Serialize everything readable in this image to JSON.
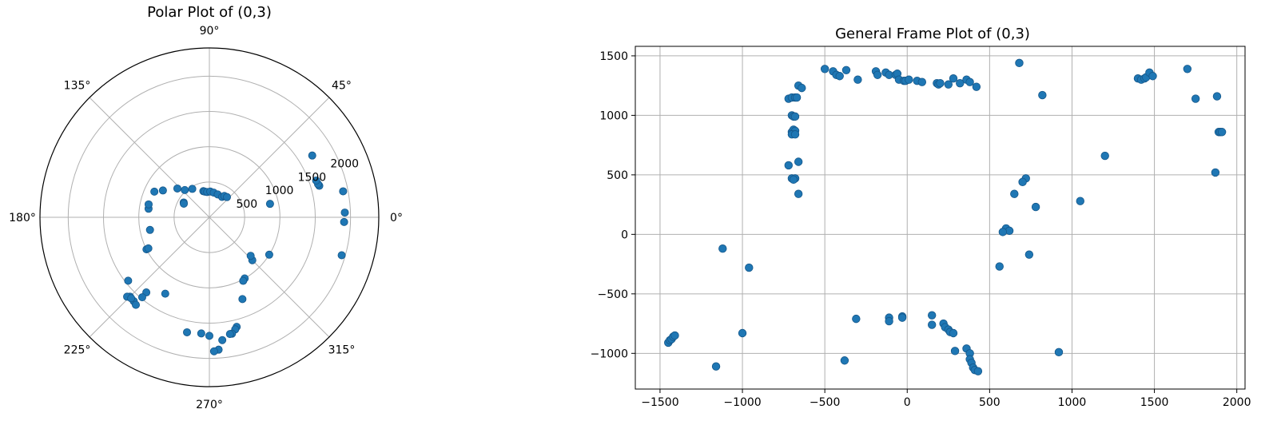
{
  "chart_data": [
    {
      "type": "scatter",
      "projection": "polar",
      "title": "Polar Plot of (0,3)",
      "theta_tick_labels": [
        "0°",
        "45°",
        "90°",
        "135°",
        "180°",
        "225°",
        "270°",
        "315°"
      ],
      "theta_ticks_deg": [
        0,
        45,
        90,
        135,
        180,
        225,
        270,
        315
      ],
      "r_tick_labels": [
        "500",
        "1000",
        "1500",
        "2000"
      ],
      "r_ticks": [
        500,
        1000,
        1500,
        2000
      ],
      "rlim": [
        0,
        2400
      ],
      "grid": true,
      "marker_color": "#1f77b4",
      "points": [
        {
          "theta": 2,
          "r": 1920
        },
        {
          "theta": -2,
          "r": 1910
        },
        {
          "theta": 11,
          "r": 1930
        },
        {
          "theta": -16,
          "r": 1950
        },
        {
          "theta": 31,
          "r": 1700
        },
        {
          "theta": 12.5,
          "r": 880
        },
        {
          "theta": -32,
          "r": 1000
        },
        {
          "theta": -45,
          "r": 860
        },
        {
          "theta": -43,
          "r": 800
        },
        {
          "theta": -60,
          "r": 1000
        },
        {
          "theta": -62,
          "r": 1020
        },
        {
          "theta": -68,
          "r": 1250
        },
        {
          "theta": -76,
          "r": 1600
        },
        {
          "theta": -77,
          "r": 1630
        },
        {
          "theta": -79,
          "r": 1680
        },
        {
          "theta": -80,
          "r": 1680
        },
        {
          "theta": -84,
          "r": 1750
        },
        {
          "theta": -86,
          "r": 1880
        },
        {
          "theta": -88,
          "r": 1900
        },
        {
          "theta": -90,
          "r": 1680
        },
        {
          "theta": -94,
          "r": 1650
        },
        {
          "theta": -101,
          "r": 1660
        },
        {
          "theta": -135,
          "r": 1590
        },
        {
          "theta": -130,
          "r": 1390
        },
        {
          "theta": -132,
          "r": 1600
        },
        {
          "theta": -136,
          "r": 1620
        },
        {
          "theta": -130,
          "r": 1620
        },
        {
          "theta": -134,
          "r": 1595
        },
        {
          "theta": -130,
          "r": 1480
        },
        {
          "theta": -120,
          "r": 1250
        },
        {
          "theta": -142,
          "r": 1460
        },
        {
          "theta": -153,
          "r": 1000
        },
        {
          "theta": -153,
          "r": 970
        },
        {
          "theta": -168,
          "r": 860
        },
        {
          "theta": 172,
          "r": 870
        },
        {
          "theta": 168,
          "r": 880
        },
        {
          "theta": 155,
          "r": 860
        },
        {
          "theta": 150,
          "r": 760
        },
        {
          "theta": 138,
          "r": 610
        },
        {
          "theta": 132,
          "r": 520
        },
        {
          "theta": 103,
          "r": 380
        },
        {
          "theta": 100,
          "r": 370
        },
        {
          "theta": 95,
          "r": 360
        },
        {
          "theta": 88,
          "r": 365
        },
        {
          "theta": 80,
          "r": 355
        },
        {
          "theta": 70,
          "r": 345
        },
        {
          "theta": 58,
          "r": 340
        },
        {
          "theta": 55,
          "r": 370
        },
        {
          "theta": 49,
          "r": 380
        },
        {
          "theta": 150,
          "r": 420
        },
        {
          "theta": 152,
          "r": 410
        },
        {
          "theta": 121,
          "r": 470
        },
        {
          "theta": 16,
          "r": 1620
        },
        {
          "theta": 17,
          "r": 1610
        },
        {
          "theta": 19,
          "r": 1600
        }
      ]
    },
    {
      "type": "scatter",
      "title": "General Frame Plot of (0,3)",
      "xlabel": "",
      "ylabel": "",
      "xlim": [
        -1650,
        2050
      ],
      "ylim": [
        -1300,
        1580
      ],
      "x_ticks": [
        -1500,
        -1000,
        -500,
        0,
        500,
        1000,
        1500,
        2000
      ],
      "x_tick_labels": [
        "−1500",
        "−1000",
        "−500",
        "0",
        "500",
        "1000",
        "1500",
        "2000"
      ],
      "y_ticks": [
        -1000,
        -500,
        0,
        500,
        1000,
        1500
      ],
      "y_tick_labels": [
        "−1000",
        "−500",
        "0",
        "500",
        "1000",
        "1500"
      ],
      "grid": true,
      "marker_color": "#1f77b4",
      "x": [
        -500,
        -450,
        -430,
        -410,
        -370,
        -300,
        -190,
        -180,
        -130,
        -110,
        -70,
        -60,
        -50,
        -20,
        -10,
        10,
        60,
        90,
        180,
        190,
        200,
        250,
        280,
        320,
        360,
        380,
        420,
        -720,
        -700,
        -680,
        -670,
        -660,
        -700,
        -690,
        -680,
        -700,
        -690,
        -680,
        -720,
        -700,
        -680,
        -690,
        -660,
        -700,
        -680,
        -640,
        -660,
        680,
        820,
        1200,
        1050,
        780,
        720,
        700,
        650,
        600,
        620,
        580,
        560,
        740,
        1400,
        1420,
        1440,
        1450,
        1470,
        1490,
        1700,
        1750,
        1880,
        1890,
        1900,
        1910,
        1870,
        -1450,
        -1440,
        -1430,
        -1420,
        -1410,
        -1000,
        -1160,
        -1120,
        -960,
        -380,
        -310,
        -110,
        -110,
        -30,
        -30,
        150,
        150,
        220,
        230,
        250,
        260,
        280,
        290,
        360,
        380,
        380,
        390,
        400,
        410,
        430,
        920
      ],
      "y": [
        1390,
        1370,
        1340,
        1330,
        1380,
        1300,
        1370,
        1340,
        1360,
        1340,
        1340,
        1350,
        1300,
        1290,
        1290,
        1300,
        1290,
        1280,
        1270,
        1260,
        1270,
        1260,
        1310,
        1270,
        1300,
        1280,
        1240,
        1140,
        1150,
        1150,
        1150,
        1250,
        1000,
        990,
        990,
        860,
        880,
        870,
        580,
        470,
        470,
        460,
        610,
        840,
        840,
        1230,
        340,
        1440,
        1170,
        660,
        280,
        230,
        470,
        440,
        340,
        50,
        30,
        20,
        -270,
        -170,
        1310,
        1300,
        1310,
        1320,
        1360,
        1330,
        1390,
        1140,
        1160,
        860,
        860,
        860,
        520,
        -910,
        -890,
        -880,
        -860,
        -850,
        -830,
        -1110,
        -120,
        -280,
        -1060,
        -710,
        -700,
        -730,
        -690,
        -700,
        -680,
        -760,
        -750,
        -780,
        -800,
        -820,
        -830,
        -980,
        -960,
        -1000,
        -1050,
        -1080,
        -1120,
        -1140,
        -1150,
        -990
      ]
    }
  ]
}
